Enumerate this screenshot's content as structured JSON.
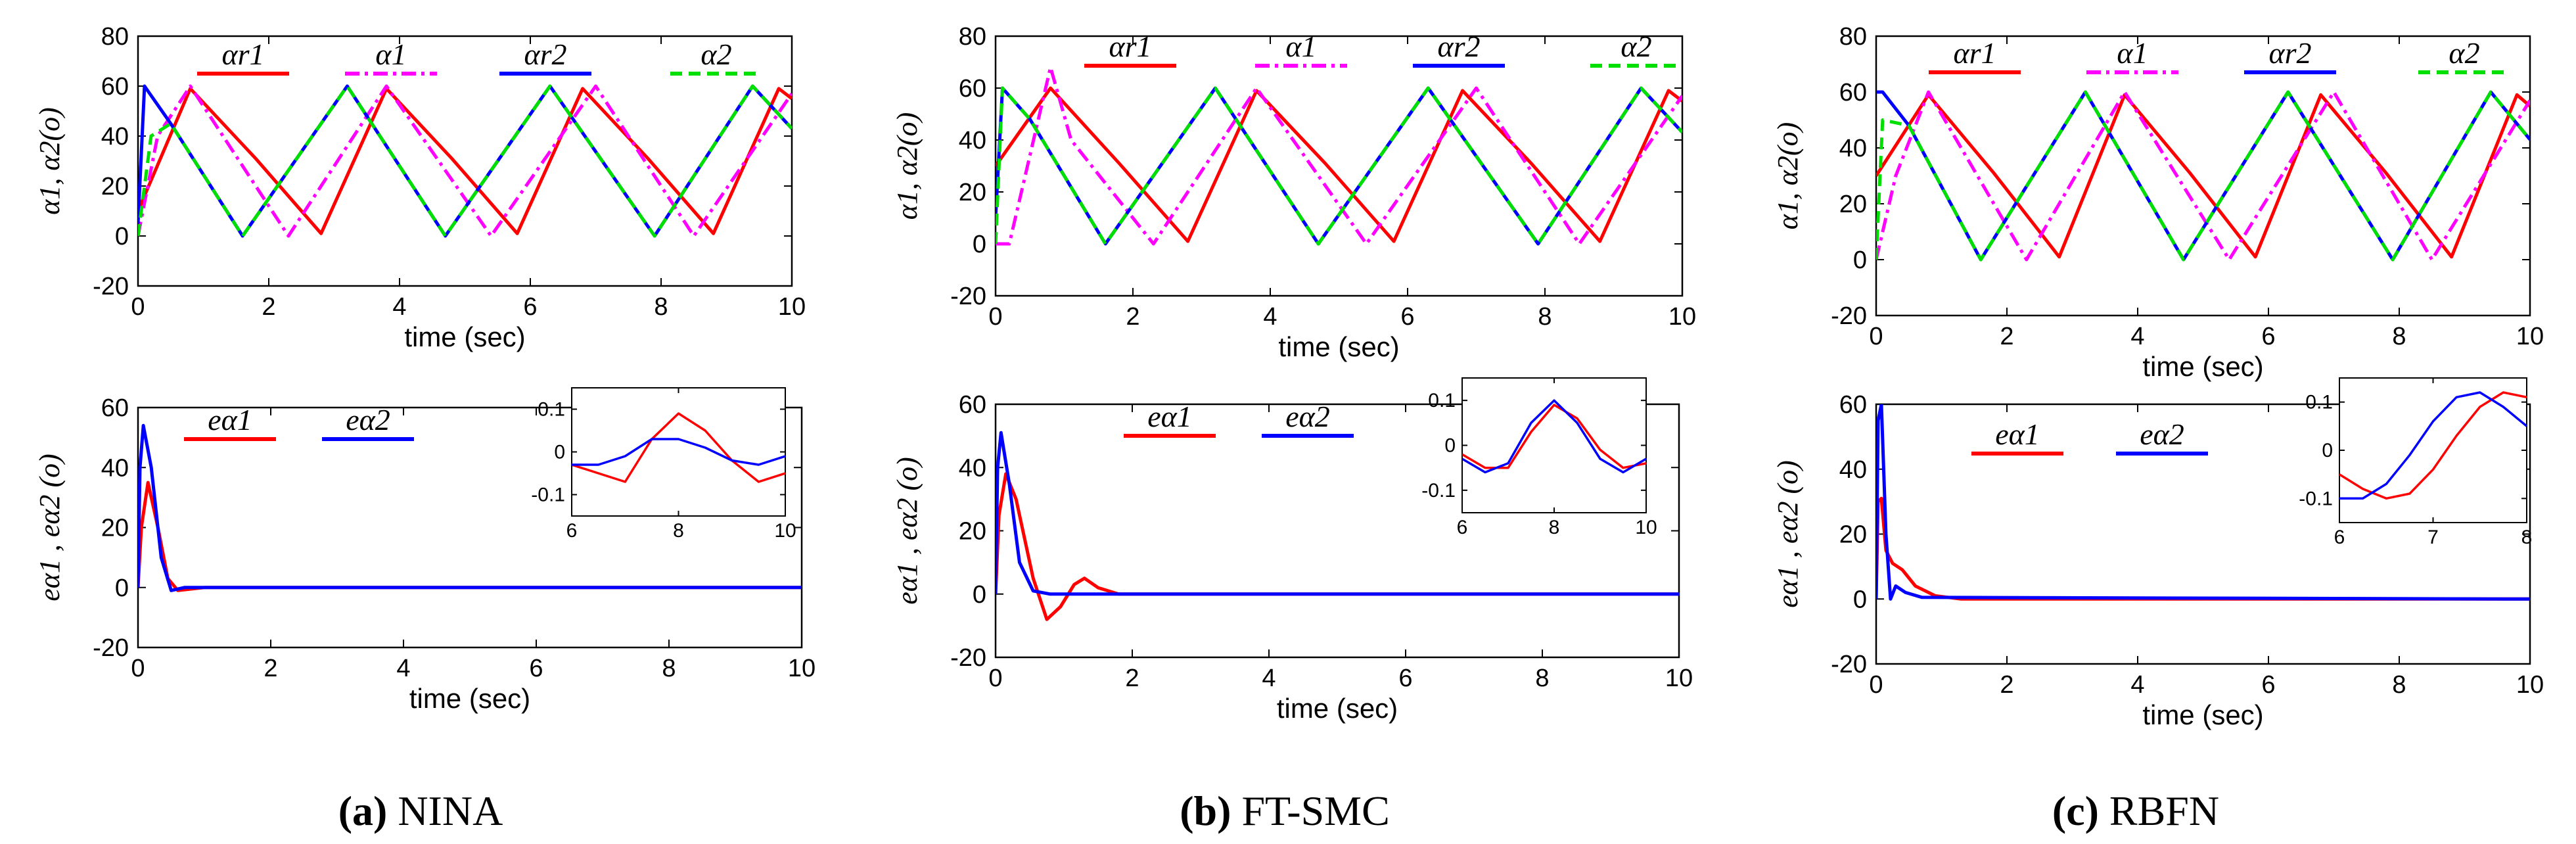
{
  "chart_data": [
    {
      "type": "line",
      "title": "",
      "panel": "a-top",
      "xlabel": "time (sec)",
      "ylabel": "α1, α2(o)",
      "xlim": [
        0,
        10
      ],
      "ylim": [
        -20,
        80
      ],
      "xticks": [
        0,
        2,
        4,
        6,
        8,
        10
      ],
      "yticks": [
        -20,
        0,
        20,
        40,
        60,
        80
      ],
      "legend": [
        "αr1",
        "α1",
        "αr2",
        "α2"
      ],
      "series": [
        {
          "name": "αr1",
          "color": "#ff0000",
          "dash": "solid",
          "x": [
            0,
            0.8,
            1.8,
            2.8,
            3.8,
            4.8,
            5.8,
            6.8,
            7.8,
            8.8,
            9.8,
            10
          ],
          "y": [
            10,
            59,
            31,
            1,
            59,
            31,
            1,
            59,
            31,
            1,
            59,
            55
          ]
        },
        {
          "name": "α1",
          "color": "#ff00ff",
          "dash": "dashdot",
          "x": [
            0,
            0.3,
            0.8,
            2.3,
            3.8,
            5.4,
            7.0,
            8.5,
            10
          ],
          "y": [
            0,
            40,
            60,
            0,
            60,
            0,
            60,
            0,
            57
          ]
        },
        {
          "name": "αr2",
          "color": "#0000ff",
          "dash": "solid",
          "x": [
            0,
            0.1,
            0.5,
            1.6,
            3.2,
            4.7,
            6.3,
            7.9,
            9.4,
            10
          ],
          "y": [
            5,
            60,
            45,
            0,
            60,
            0,
            60,
            0,
            60,
            43
          ]
        },
        {
          "name": "α2",
          "color": "#00e000",
          "dash": "dashed",
          "x": [
            0,
            0.2,
            0.5,
            1.6,
            3.2,
            4.7,
            6.3,
            7.9,
            9.4,
            10
          ],
          "y": [
            0,
            40,
            45,
            0,
            60,
            0,
            60,
            0,
            60,
            43
          ]
        }
      ]
    },
    {
      "type": "line",
      "panel": "b-top",
      "xlabel": "time (sec)",
      "ylabel": "α1, α2(o)",
      "xlim": [
        0,
        10
      ],
      "ylim": [
        -20,
        80
      ],
      "xticks": [
        0,
        2,
        4,
        6,
        8,
        10
      ],
      "yticks": [
        -20,
        0,
        20,
        40,
        60,
        80
      ],
      "legend": [
        "αr1",
        "α1",
        "αr2",
        "α2"
      ],
      "series": [
        {
          "name": "αr1",
          "color": "#ff0000",
          "dash": "solid",
          "x": [
            0,
            0.8,
            1.8,
            2.8,
            3.8,
            4.8,
            5.8,
            6.8,
            7.8,
            8.8,
            9.8,
            10
          ],
          "y": [
            30,
            60,
            31,
            1,
            59,
            31,
            1,
            59,
            31,
            1,
            59,
            55
          ]
        },
        {
          "name": "α1",
          "color": "#ff00ff",
          "dash": "dashdot",
          "x": [
            0,
            0.2,
            0.8,
            1.1,
            2.3,
            3.8,
            5.4,
            7.0,
            8.5,
            10
          ],
          "y": [
            0,
            0,
            68,
            40,
            0,
            60,
            0,
            60,
            0,
            57
          ]
        },
        {
          "name": "αr2",
          "color": "#0000ff",
          "dash": "solid",
          "x": [
            0,
            0.1,
            0.5,
            1.6,
            3.2,
            4.7,
            6.3,
            7.9,
            9.4,
            10
          ],
          "y": [
            10,
            60,
            48,
            0,
            60,
            0,
            60,
            0,
            60,
            43
          ]
        },
        {
          "name": "α2",
          "color": "#00e000",
          "dash": "dashed",
          "x": [
            0,
            0.1,
            0.5,
            1.6,
            3.2,
            4.7,
            6.3,
            7.9,
            9.4,
            10
          ],
          "y": [
            0,
            60,
            48,
            0,
            60,
            0,
            60,
            0,
            60,
            43
          ]
        }
      ]
    },
    {
      "type": "line",
      "panel": "c-top",
      "xlabel": "time (sec)",
      "ylabel": "α1, α2(o)",
      "xlim": [
        0,
        10
      ],
      "ylim": [
        -20,
        80
      ],
      "xticks": [
        0,
        2,
        4,
        6,
        8,
        10
      ],
      "yticks": [
        -20,
        0,
        20,
        40,
        60,
        80
      ],
      "legend": [
        "αr1",
        "α1",
        "αr2",
        "α2"
      ],
      "series": [
        {
          "name": "αr1",
          "color": "#ff0000",
          "dash": "solid",
          "x": [
            0,
            0.8,
            1.8,
            2.8,
            3.8,
            4.8,
            5.8,
            6.8,
            7.8,
            8.8,
            9.8,
            10
          ],
          "y": [
            30,
            59,
            31,
            1,
            59,
            31,
            1,
            59,
            31,
            1,
            59,
            55
          ]
        },
        {
          "name": "α1",
          "color": "#ff00ff",
          "dash": "dashdot",
          "x": [
            0,
            0.3,
            0.8,
            2.3,
            3.8,
            5.4,
            7.0,
            8.5,
            10
          ],
          "y": [
            0,
            30,
            60,
            0,
            60,
            0,
            60,
            0,
            57
          ]
        },
        {
          "name": "αr2",
          "color": "#0000ff",
          "dash": "solid",
          "x": [
            0,
            0.1,
            0.5,
            1.6,
            3.2,
            4.7,
            6.3,
            7.9,
            9.4,
            10
          ],
          "y": [
            60,
            60,
            48,
            0,
            60,
            0,
            60,
            0,
            60,
            43
          ]
        },
        {
          "name": "α2",
          "color": "#00e000",
          "dash": "dashed",
          "x": [
            0,
            0.1,
            0.5,
            1.6,
            3.2,
            4.7,
            6.3,
            7.9,
            9.4,
            10
          ],
          "y": [
            0,
            50,
            48,
            0,
            60,
            0,
            60,
            0,
            60,
            43
          ]
        }
      ]
    },
    {
      "type": "line",
      "panel": "a-bottom",
      "xlabel": "time (sec)",
      "ylabel": "eα1 , eα2 (o)",
      "xlim": [
        0,
        10
      ],
      "ylim": [
        -20,
        60
      ],
      "xticks": [
        0,
        2,
        4,
        6,
        8,
        10
      ],
      "yticks": [
        -20,
        0,
        20,
        40,
        60
      ],
      "legend": [
        "eα1",
        "eα2"
      ],
      "series": [
        {
          "name": "eα1",
          "color": "#ff0000",
          "x": [
            0,
            0.05,
            0.15,
            0.3,
            0.45,
            0.6,
            1.0,
            10
          ],
          "y": [
            0,
            20,
            35,
            20,
            3,
            -1,
            0,
            0
          ]
        },
        {
          "name": "eα2",
          "color": "#0000ff",
          "x": [
            0,
            0.03,
            0.08,
            0.2,
            0.35,
            0.5,
            0.7,
            10
          ],
          "y": [
            0,
            40,
            54,
            40,
            10,
            -1,
            0,
            0
          ]
        }
      ],
      "inset": {
        "xlim": [
          6,
          10
        ],
        "ylim": [
          -0.15,
          0.15
        ],
        "xticks": [
          6,
          8,
          10
        ],
        "yticks": [
          -0.1,
          0,
          0.1
        ],
        "series": [
          {
            "name": "eα1",
            "color": "#ff0000",
            "x": [
              6,
              6.5,
              7.0,
              7.5,
              8.0,
              8.5,
              9.0,
              9.5,
              10
            ],
            "y": [
              -0.03,
              -0.05,
              -0.07,
              0.03,
              0.09,
              0.05,
              -0.02,
              -0.07,
              -0.05
            ]
          },
          {
            "name": "eα2",
            "color": "#0000ff",
            "x": [
              6,
              6.5,
              7.0,
              7.5,
              8.0,
              8.5,
              9.0,
              9.5,
              10
            ],
            "y": [
              -0.03,
              -0.03,
              -0.01,
              0.03,
              0.03,
              0.01,
              -0.02,
              -0.03,
              -0.01
            ]
          }
        ]
      }
    },
    {
      "type": "line",
      "panel": "b-bottom",
      "xlabel": "time (sec)",
      "ylabel": "eα1 , eα2 (o)",
      "xlim": [
        0,
        10
      ],
      "ylim": [
        -20,
        60
      ],
      "xticks": [
        0,
        2,
        4,
        6,
        8,
        10
      ],
      "yticks": [
        -20,
        0,
        20,
        40,
        60
      ],
      "legend": [
        "eα1",
        "eα2"
      ],
      "series": [
        {
          "name": "eα1",
          "color": "#ff0000",
          "x": [
            0,
            0.05,
            0.15,
            0.3,
            0.55,
            0.75,
            0.95,
            1.15,
            1.3,
            1.5,
            1.8,
            10
          ],
          "y": [
            0,
            25,
            38,
            30,
            5,
            -8,
            -4,
            3,
            5,
            2,
            0,
            0
          ]
        },
        {
          "name": "eα2",
          "color": "#0000ff",
          "x": [
            0,
            0.03,
            0.08,
            0.2,
            0.35,
            0.55,
            0.8,
            10
          ],
          "y": [
            0,
            40,
            51,
            35,
            10,
            1,
            0,
            0
          ]
        }
      ],
      "inset": {
        "xlim": [
          6,
          10
        ],
        "ylim": [
          -0.15,
          0.15
        ],
        "xticks": [
          6,
          8,
          10
        ],
        "yticks": [
          -0.1,
          0,
          0.1
        ],
        "series": [
          {
            "name": "eα1",
            "color": "#ff0000",
            "x": [
              6,
              6.5,
              7.0,
              7.5,
              8.0,
              8.5,
              9.0,
              9.5,
              10
            ],
            "y": [
              -0.02,
              -0.05,
              -0.05,
              0.03,
              0.09,
              0.06,
              -0.01,
              -0.05,
              -0.04
            ]
          },
          {
            "name": "eα2",
            "color": "#0000ff",
            "x": [
              6,
              6.5,
              7.0,
              7.5,
              8.0,
              8.5,
              9.0,
              9.5,
              10
            ],
            "y": [
              -0.03,
              -0.06,
              -0.04,
              0.05,
              0.1,
              0.05,
              -0.03,
              -0.06,
              -0.03
            ]
          }
        ]
      }
    },
    {
      "type": "line",
      "panel": "c-bottom",
      "xlabel": "time (sec)",
      "ylabel": "eα1 , eα2 (o)",
      "xlim": [
        0,
        10
      ],
      "ylim": [
        -20,
        60
      ],
      "xticks": [
        0,
        2,
        4,
        6,
        8,
        10
      ],
      "yticks": [
        -20,
        0,
        20,
        40,
        60
      ],
      "legend": [
        "eα1",
        "eα2"
      ],
      "series": [
        {
          "name": "eα1",
          "color": "#ff0000",
          "x": [
            0,
            0.03,
            0.08,
            0.15,
            0.25,
            0.4,
            0.6,
            0.9,
            1.3,
            10
          ],
          "y": [
            0,
            30,
            31,
            15,
            11,
            9,
            4,
            1,
            0,
            0
          ]
        },
        {
          "name": "eα2",
          "color": "#0000ff",
          "x": [
            0,
            0.03,
            0.08,
            0.15,
            0.22,
            0.3,
            0.45,
            0.7,
            10
          ],
          "y": [
            0,
            55,
            60,
            20,
            0,
            4,
            2,
            0.5,
            0
          ]
        }
      ],
      "inset": {
        "xlim": [
          6,
          8
        ],
        "ylim": [
          -0.15,
          0.15
        ],
        "xticks": [
          6,
          7,
          8
        ],
        "yticks": [
          -0.1,
          0,
          0.1
        ],
        "series": [
          {
            "name": "eα1",
            "color": "#ff0000",
            "x": [
              6,
              6.25,
              6.5,
              6.75,
              7.0,
              7.25,
              7.5,
              7.75,
              8
            ],
            "y": [
              -0.05,
              -0.08,
              -0.1,
              -0.09,
              -0.04,
              0.03,
              0.09,
              0.12,
              0.11
            ]
          },
          {
            "name": "eα2",
            "color": "#0000ff",
            "x": [
              6,
              6.25,
              6.5,
              6.75,
              7.0,
              7.25,
              7.5,
              7.75,
              8
            ],
            "y": [
              -0.1,
              -0.1,
              -0.07,
              -0.01,
              0.06,
              0.11,
              0.12,
              0.09,
              0.05
            ]
          }
        ]
      }
    }
  ],
  "captions": [
    {
      "letter": "(a)",
      "name": "NINA"
    },
    {
      "letter": "(b)",
      "name": "FT-SMC"
    },
    {
      "letter": "(c)",
      "name": "RBFN"
    }
  ]
}
